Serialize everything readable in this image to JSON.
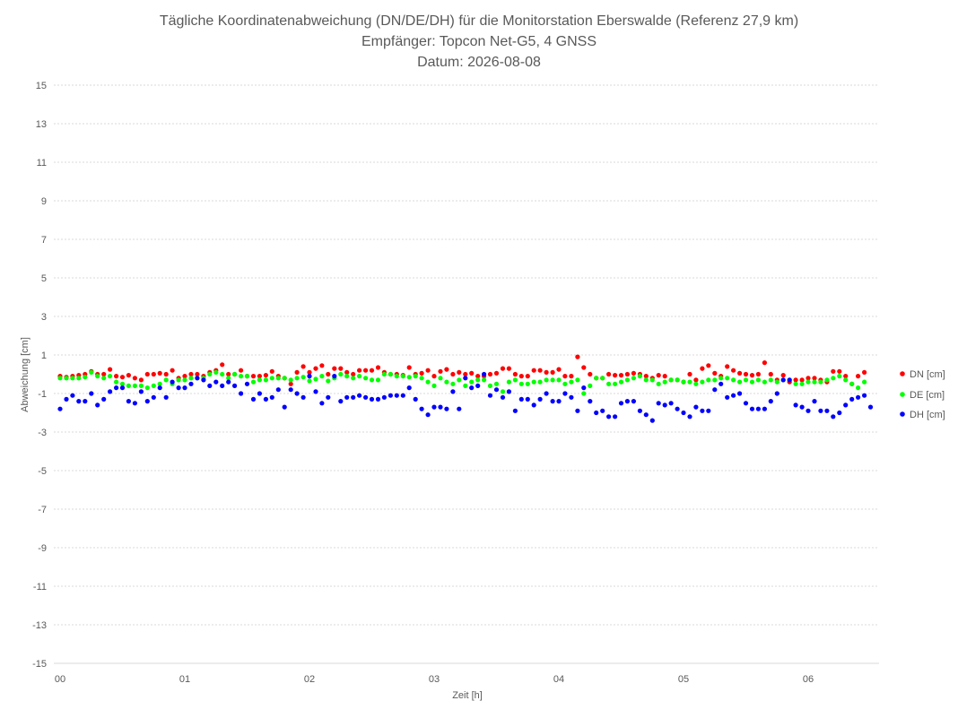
{
  "chart_data": {
    "type": "scatter",
    "title_lines": [
      "Tägliche Koordinatenabweichung (DN/DE/DH) für die Monitorstation Eberswalde (Referenz 27,9 km)",
      "Empfänger: Topcon Net-G5, 4 GNSS",
      "Datum: 2026-08-08"
    ],
    "xlabel": "Zeit [h]",
    "ylabel": "Abweichung [cm]",
    "xlim": [
      0,
      6.6
    ],
    "ylim": [
      -15,
      15
    ],
    "x_ticks": [
      {
        "value": 0,
        "label": "00"
      },
      {
        "value": 1,
        "label": "01"
      },
      {
        "value": 2,
        "label": "02"
      },
      {
        "value": 3,
        "label": "03"
      },
      {
        "value": 4,
        "label": "04"
      },
      {
        "value": 5,
        "label": "05"
      },
      {
        "value": 6,
        "label": "06"
      }
    ],
    "y_ticks": [
      {
        "value": 15,
        "label": "15"
      },
      {
        "value": 13,
        "label": "13"
      },
      {
        "value": 11,
        "label": "11"
      },
      {
        "value": 9,
        "label": "9"
      },
      {
        "value": 7,
        "label": "7"
      },
      {
        "value": 5,
        "label": "5"
      },
      {
        "value": 3,
        "label": "3"
      },
      {
        "value": 1,
        "label": "1"
      },
      {
        "value": -1,
        "label": "-1"
      },
      {
        "value": -3,
        "label": "-3"
      },
      {
        "value": -5,
        "label": "-5"
      },
      {
        "value": -7,
        "label": "-7"
      },
      {
        "value": -9,
        "label": "-9"
      },
      {
        "value": -11,
        "label": "-11"
      },
      {
        "value": -13,
        "label": "-13"
      },
      {
        "value": -15,
        "label": "-15"
      }
    ],
    "grid": true,
    "legend_position": "right",
    "x_step_hours": 0.05,
    "series": [
      {
        "name": "DN [cm]",
        "color": "#ff0000",
        "values": [
          -0.1,
          -0.15,
          -0.1,
          -0.05,
          0,
          0.15,
          0,
          0,
          0.25,
          -0.1,
          -0.15,
          -0.05,
          -0.2,
          -0.3,
          0,
          0,
          0.05,
          0,
          0.2,
          -0.2,
          -0.1,
          0,
          0,
          -0.1,
          0.1,
          0.2,
          0.5,
          0,
          0,
          0.2,
          -0.1,
          -0.1,
          -0.1,
          -0.05,
          0.15,
          -0.1,
          -0.2,
          -0.5,
          0.1,
          0.4,
          0.1,
          0.3,
          0.45,
          0,
          0.3,
          0.3,
          0.1,
          0,
          0.2,
          0.2,
          0.2,
          0.35,
          0.1,
          0,
          0,
          -0.05,
          0.35,
          0,
          0.05,
          0.2,
          -0.1,
          0.15,
          0.25,
          0,
          0.1,
          0,
          0.05,
          -0.1,
          -0.1,
          0,
          0.05,
          0.3,
          0.3,
          0,
          -0.1,
          -0.1,
          0.2,
          0.2,
          0.1,
          0.1,
          0.25,
          -0.1,
          -0.1,
          0.9,
          0.35,
          0,
          -0.2,
          -0.2,
          0,
          -0.05,
          -0.05,
          0,
          0.05,
          0,
          -0.1,
          -0.2,
          -0.05,
          -0.1,
          -0.3,
          -0.3,
          -0.4,
          0,
          -0.3,
          0.3,
          0.45,
          0.05,
          -0.1,
          0.4,
          0.2,
          0.05,
          0,
          -0.05,
          0,
          0.6,
          0,
          -0.3,
          -0.05,
          -0.4,
          -0.3,
          -0.3,
          -0.2,
          -0.2,
          -0.3,
          -0.4,
          0.15,
          0.15,
          -0.1,
          -0.5,
          -0.1,
          0.1
        ]
      },
      {
        "name": "DE [cm]",
        "color": "#00ff00",
        "values": [
          -0.2,
          -0.2,
          -0.2,
          -0.2,
          -0.15,
          0.1,
          -0.1,
          -0.2,
          -0.1,
          -0.4,
          -0.5,
          -0.6,
          -0.6,
          -0.6,
          -0.7,
          -0.6,
          -0.5,
          -0.3,
          -0.5,
          -0.3,
          -0.3,
          -0.2,
          -0.2,
          -0.2,
          0,
          0.1,
          0,
          -0.2,
          0,
          -0.1,
          -0.1,
          -0.4,
          -0.3,
          -0.3,
          -0.2,
          -0.2,
          -0.2,
          -0.3,
          -0.2,
          -0.15,
          -0.35,
          -0.25,
          -0.1,
          -0.35,
          -0.2,
          0,
          -0.1,
          -0.2,
          -0.1,
          -0.2,
          -0.3,
          -0.3,
          0,
          0,
          -0.1,
          -0.1,
          -0.15,
          -0.1,
          -0.2,
          -0.4,
          -0.6,
          -0.2,
          -0.4,
          -0.5,
          -0.3,
          -0.6,
          -0.4,
          -0.3,
          -0.3,
          -0.6,
          -0.5,
          -0.9,
          -0.4,
          -0.3,
          -0.5,
          -0.5,
          -0.4,
          -0.4,
          -0.3,
          -0.3,
          -0.3,
          -0.5,
          -0.4,
          -0.3,
          -1,
          -0.6,
          -0.2,
          -0.2,
          -0.5,
          -0.5,
          -0.4,
          -0.3,
          -0.2,
          -0.1,
          -0.3,
          -0.3,
          -0.5,
          -0.4,
          -0.3,
          -0.3,
          -0.4,
          -0.4,
          -0.5,
          -0.4,
          -0.3,
          -0.3,
          -0.2,
          -0.2,
          -0.3,
          -0.4,
          -0.3,
          -0.4,
          -0.3,
          -0.4,
          -0.3,
          -0.4,
          -0.3,
          -0.3,
          -0.5,
          -0.5,
          -0.4,
          -0.4,
          -0.4,
          -0.3,
          -0.2,
          -0.1,
          -0.3,
          -0.5,
          -0.7,
          -0.4
        ]
      },
      {
        "name": "DH [cm]",
        "color": "#0000ff",
        "values": [
          -1.8,
          -1.3,
          -1.1,
          -1.4,
          -1.4,
          -1,
          -1.6,
          -1.3,
          -0.9,
          -0.7,
          -0.7,
          -1.4,
          -1.5,
          -0.9,
          -1.4,
          -1.2,
          -0.7,
          -1.2,
          -0.4,
          -0.7,
          -0.7,
          -0.5,
          -0.2,
          -0.3,
          -0.6,
          -0.4,
          -0.6,
          -0.4,
          -0.6,
          -1,
          -0.5,
          -1.3,
          -1,
          -1.3,
          -1.2,
          -0.8,
          -1.7,
          -0.8,
          -1,
          -1.2,
          -0.1,
          -0.9,
          -1.5,
          -1.2,
          -0.1,
          -1.4,
          -1.2,
          -1.2,
          -1.1,
          -1.2,
          -1.3,
          -1.3,
          -1.2,
          -1.1,
          -1.1,
          -1.1,
          -0.7,
          -1.3,
          -1.8,
          -2.1,
          -1.7,
          -1.7,
          -1.8,
          -0.9,
          -1.8,
          -0.2,
          -0.7,
          -0.6,
          0,
          -1.1,
          -0.8,
          -1.2,
          -0.9,
          -1.9,
          -1.3,
          -1.3,
          -1.6,
          -1.3,
          -1,
          -1.4,
          -1.4,
          -1,
          -1.2,
          -1.9,
          -0.7,
          -1.4,
          -2,
          -1.9,
          -2.2,
          -2.2,
          -1.5,
          -1.4,
          -1.4,
          -1.9,
          -2.1,
          -2.4,
          -1.5,
          -1.6,
          -1.5,
          -1.8,
          -2,
          -2.2,
          -1.7,
          -1.9,
          -1.9,
          -0.8,
          -0.5,
          -1.2,
          -1.1,
          -1,
          -1.5,
          -1.8,
          -1.8,
          -1.8,
          -1.4,
          -1,
          -0.3,
          -0.3,
          -1.6,
          -1.7,
          -1.9,
          -1.4,
          -1.9,
          -1.9,
          -2.2,
          -2,
          -1.6,
          -1.3,
          -1.2,
          -1.1,
          -1.7
        ]
      }
    ]
  }
}
